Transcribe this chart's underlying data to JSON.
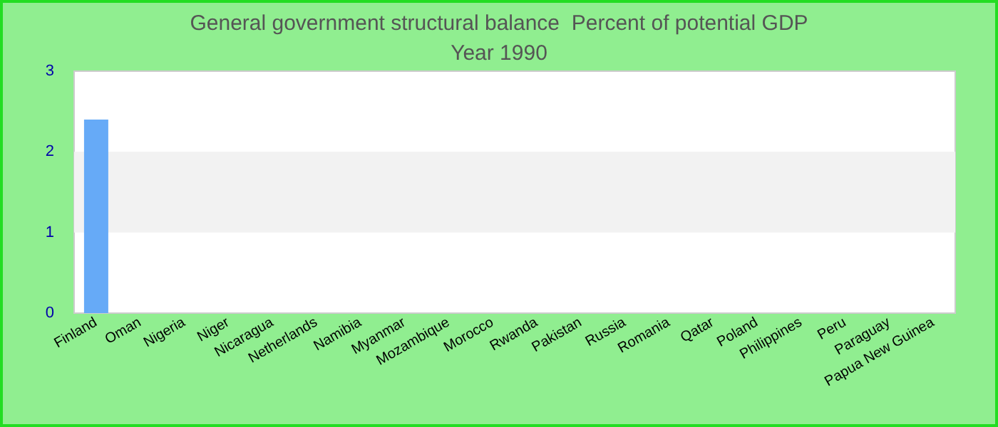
{
  "chart_data": {
    "type": "bar",
    "title": "General government structural balance  Percent of potential GDP",
    "subtitle": "Year 1990",
    "categories": [
      "Finland",
      "Oman",
      "Nigeria",
      "Niger",
      "Nicaragua",
      "Netherlands",
      "Namibia",
      "Myanmar",
      "Mozambique",
      "Morocco",
      "Rwanda",
      "Pakistan",
      "Russia",
      "Romania",
      "Qatar",
      "Poland",
      "Philippines",
      "Peru",
      "Paraguay",
      "Papua New Guinea"
    ],
    "values": [
      2.4,
      null,
      null,
      null,
      null,
      null,
      null,
      null,
      null,
      null,
      null,
      null,
      null,
      null,
      null,
      null,
      null,
      null,
      null,
      null
    ],
    "color": "#66aaf7",
    "ylim": [
      0,
      3
    ],
    "yticks": [
      0,
      1,
      2,
      3
    ],
    "bands": [
      {
        "axis": "y",
        "from": 1,
        "to": 2,
        "color": "#f2f2f2"
      }
    ]
  }
}
